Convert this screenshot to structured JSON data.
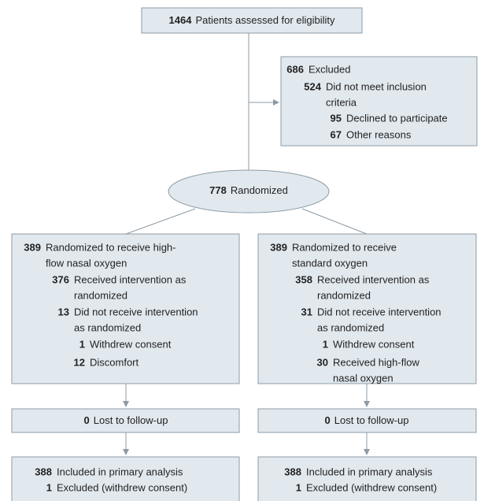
{
  "screening": {
    "number": 1464,
    "label": "Patients assessed for eligibility"
  },
  "excluded": {
    "number": 686,
    "label": "Excluded",
    "reasons": [
      {
        "number": 524,
        "lines": [
          "Did not meet inclusion",
          "criteria"
        ]
      },
      {
        "number": 95,
        "lines": [
          "Declined to participate"
        ]
      },
      {
        "number": 67,
        "lines": [
          "Other reasons"
        ]
      }
    ]
  },
  "randomized": {
    "number": 778,
    "label": "Randomized"
  },
  "arms": [
    {
      "rows": [
        {
          "number": 389,
          "lines": [
            "Randomized to receive high-",
            "flow nasal oxygen"
          ]
        },
        {
          "number": 376,
          "lines": [
            "Received intervention as",
            "randomized"
          ]
        },
        {
          "number": 13,
          "lines": [
            "Did not receive intervention",
            "as randomized"
          ]
        },
        {
          "number": 1,
          "lines": [
            "Withdrew consent"
          ]
        },
        {
          "number": 12,
          "lines": [
            "Discomfort"
          ]
        }
      ],
      "follow_up": {
        "number": 0,
        "label": "Lost to follow-up"
      },
      "analysis": [
        {
          "number": 388,
          "label": "Included in primary analysis"
        },
        {
          "number": 1,
          "label": "Excluded (withdrew consent)"
        }
      ]
    },
    {
      "rows": [
        {
          "number": 389,
          "lines": [
            "Randomized to receive",
            "standard oxygen"
          ]
        },
        {
          "number": 358,
          "lines": [
            "Received intervention as",
            "randomized"
          ]
        },
        {
          "number": 31,
          "lines": [
            "Did not receive intervention",
            "as randomized"
          ]
        },
        {
          "number": 1,
          "lines": [
            "Withdrew consent"
          ]
        },
        {
          "number": 30,
          "lines": [
            "Received high-flow",
            "nasal oxygen"
          ]
        }
      ],
      "follow_up": {
        "number": 0,
        "label": "Lost to follow-up"
      },
      "analysis": [
        {
          "number": 388,
          "label": "Included in primary analysis"
        },
        {
          "number": 1,
          "label": "Excluded (withdrew consent)"
        }
      ]
    }
  ]
}
